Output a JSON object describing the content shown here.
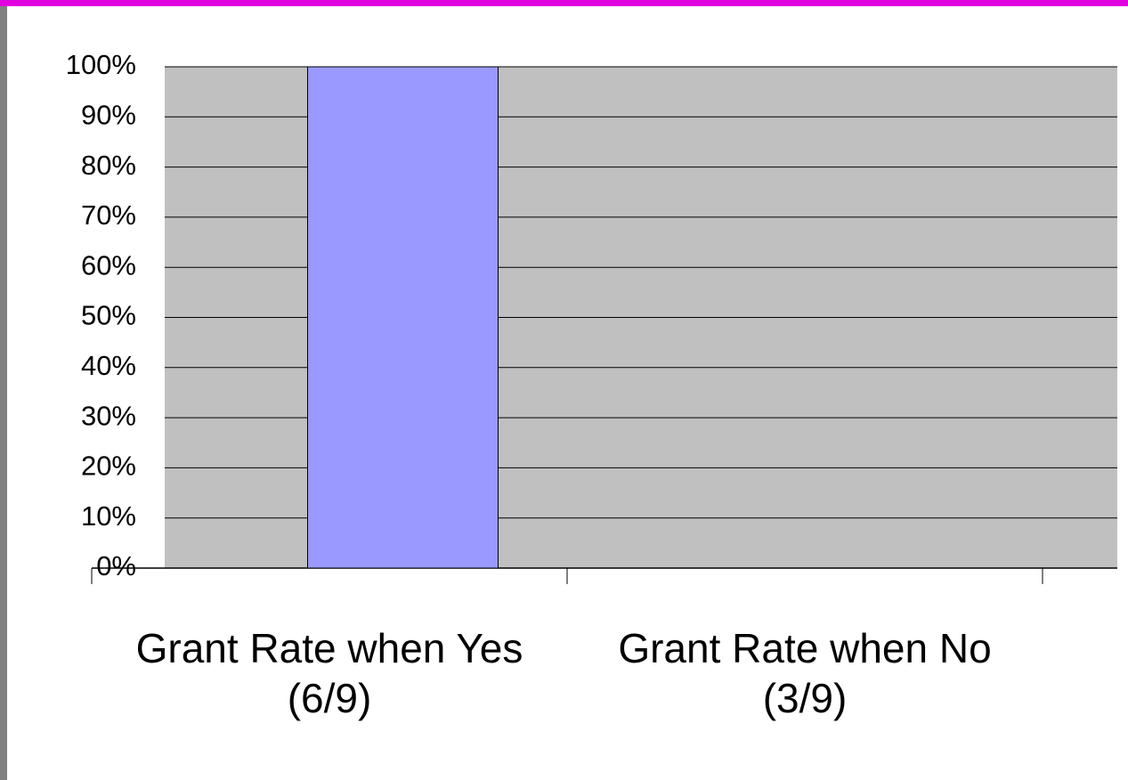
{
  "chart_data": {
    "type": "bar",
    "categories": [
      "Grant Rate when Yes (6/9)",
      "Grant Rate when No (3/9)"
    ],
    "values": [
      100,
      0
    ],
    "color": "#9999ff",
    "ylim": [
      0,
      100
    ],
    "yticks": [
      {
        "value": 0,
        "label": "0%"
      },
      {
        "value": 10,
        "label": "10%"
      },
      {
        "value": 20,
        "label": "20%"
      },
      {
        "value": 30,
        "label": "30%"
      },
      {
        "value": 40,
        "label": "40%"
      },
      {
        "value": 50,
        "label": "50%"
      },
      {
        "value": 60,
        "label": "60%"
      },
      {
        "value": 70,
        "label": "70%"
      },
      {
        "value": 80,
        "label": "80%"
      },
      {
        "value": 90,
        "label": "90%"
      },
      {
        "value": 100,
        "label": "100%"
      }
    ],
    "grid": true
  }
}
